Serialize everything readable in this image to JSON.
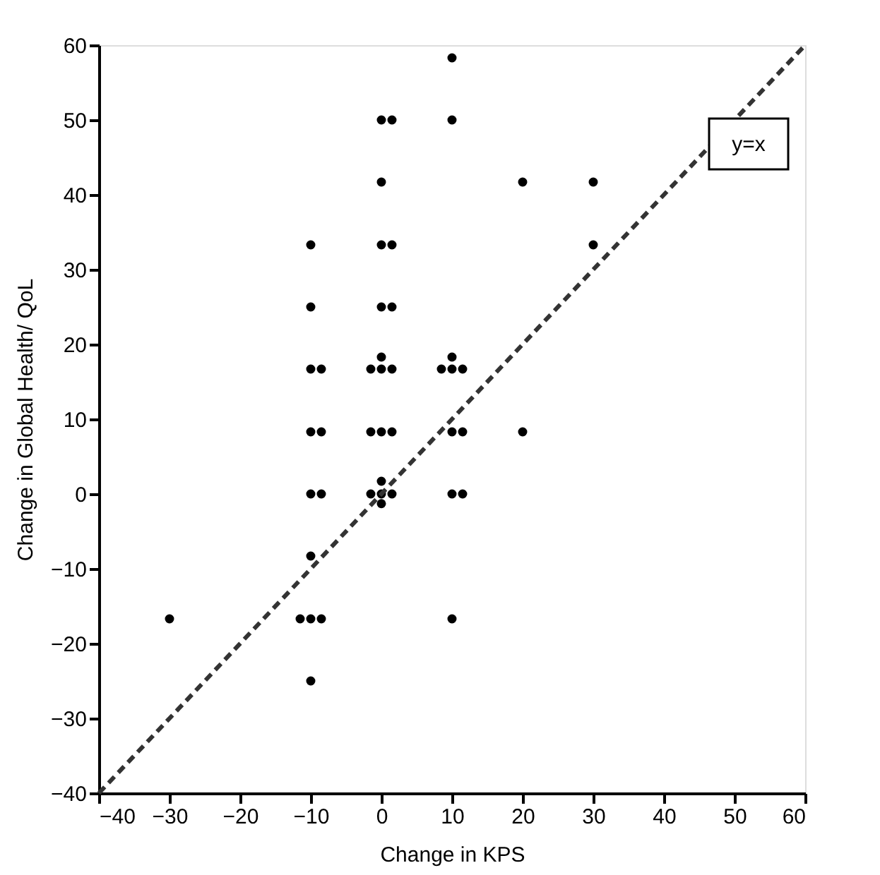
{
  "chart_data": {
    "type": "scatter",
    "xlabel": "Change in KPS",
    "ylabel": "Change in Global Health/ QoL",
    "xlim": [
      -40,
      60
    ],
    "ylim": [
      -40,
      60
    ],
    "xticks": [
      -40,
      -30,
      -20,
      -10,
      0,
      10,
      20,
      30,
      40,
      50,
      60
    ],
    "yticks": [
      -40,
      -30,
      -20,
      -10,
      0,
      10,
      20,
      30,
      40,
      50,
      60
    ],
    "grid": false,
    "annotations": [
      "y=x"
    ],
    "series": [
      {
        "color": "#000000",
        "marker": "circle",
        "x": [
          -30,
          -10,
          -10,
          -10,
          -8.5,
          -10,
          -8.5,
          -10,
          -8.5,
          -10,
          -11.5,
          -10,
          -8.5,
          -10,
          0,
          1.5,
          0,
          0,
          1.5,
          0,
          1.5,
          -1.5,
          0,
          1.5,
          0,
          -1.5,
          0,
          1.5,
          -1.5,
          0,
          1.5,
          0,
          0,
          10,
          10,
          8.5,
          10,
          11.5,
          10,
          10,
          11.5,
          10,
          11.5,
          10,
          20,
          20,
          30,
          30
        ],
        "values": [
          -16.7,
          33.3,
          25,
          16.7,
          16.7,
          8.3,
          8.3,
          0,
          0,
          -8.3,
          -16.7,
          -16.7,
          -16.7,
          -25,
          50,
          50,
          41.7,
          33.3,
          33.3,
          25,
          25,
          16.7,
          16.7,
          16.7,
          18.3,
          8.3,
          8.3,
          8.3,
          0,
          0,
          0,
          1.7,
          -1.3,
          58.3,
          50,
          16.7,
          16.7,
          16.7,
          18.3,
          8.3,
          8.3,
          0,
          0,
          -16.7,
          41.7,
          8.3,
          41.7,
          33.3
        ]
      },
      {
        "type": "line",
        "color": "#333333",
        "line_style": "dashed",
        "x": [
          -40,
          60
        ],
        "values": [
          -40,
          60
        ]
      }
    ]
  }
}
